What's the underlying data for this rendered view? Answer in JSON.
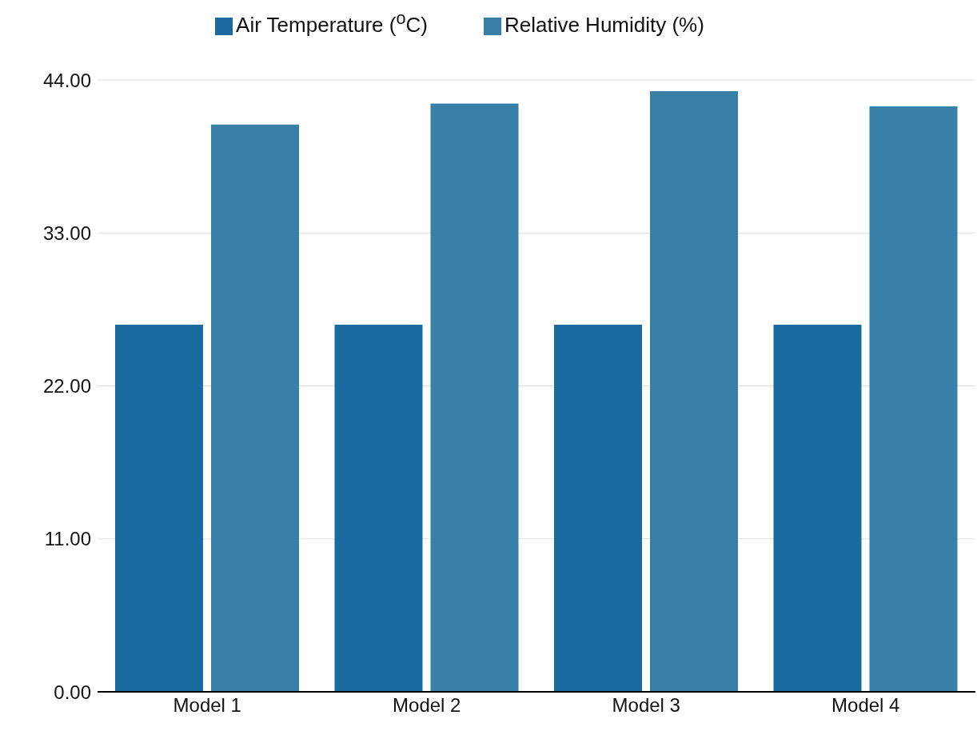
{
  "chart_data": {
    "type": "bar",
    "categories": [
      "Model 1",
      "Model 2",
      "Model 3",
      "Model 4"
    ],
    "series": [
      {
        "name": "Air Temperature ($^{o}$C)",
        "color": "#1a699f",
        "values": [
          26.4,
          26.4,
          26.4,
          26.4
        ]
      },
      {
        "name": "Relative Humidity (%)",
        "color": "#3880a8",
        "values": [
          40.8,
          42.3,
          43.2,
          42.1
        ]
      }
    ],
    "ylim": [
      0,
      44
    ],
    "yticks": [
      {
        "value": 0,
        "label": "0.00"
      },
      {
        "value": 11,
        "label": "11.00"
      },
      {
        "value": 22,
        "label": "22.00"
      },
      {
        "value": 33,
        "label": "33.00"
      },
      {
        "value": 44,
        "label": "44.00"
      }
    ],
    "grid": "y",
    "legend": "top"
  }
}
